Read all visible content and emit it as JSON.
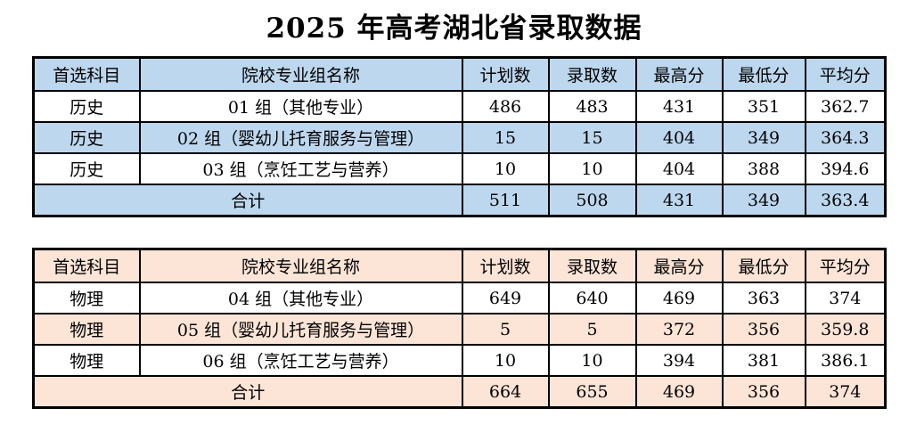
{
  "title": "2025 年高考湖北省录取数据",
  "colors": {
    "history_accent": "#BDD7EE",
    "physics_accent": "#FCE4D6",
    "border": "#000000",
    "plain_row": "#FFFFFF"
  },
  "tables": [
    {
      "id": "history",
      "headers": [
        "首选科目",
        "院校专业组名称",
        "计划数",
        "录取数",
        "最高分",
        "最低分",
        "平均分"
      ],
      "rows": [
        [
          "历史",
          "01 组（其他专业）",
          "486",
          "483",
          "431",
          "351",
          "362.7"
        ],
        [
          "历史",
          "02 组（婴幼儿托育服务与管理）",
          "15",
          "15",
          "404",
          "349",
          "364.3"
        ],
        [
          "历史",
          "03 组（烹饪工艺与营养）",
          "10",
          "10",
          "404",
          "388",
          "394.6"
        ]
      ],
      "total_row": [
        "合计",
        "511",
        "508",
        "431",
        "349",
        "363.4"
      ]
    },
    {
      "id": "physics",
      "headers": [
        "首选科目",
        "院校专业组名称",
        "计划数",
        "录取数",
        "最高分",
        "最低分",
        "平均分"
      ],
      "rows": [
        [
          "物理",
          "04 组（其他专业）",
          "649",
          "640",
          "469",
          "363",
          "374"
        ],
        [
          "物理",
          "05 组（婴幼儿托育服务与管理）",
          "5",
          "5",
          "372",
          "356",
          "359.8"
        ],
        [
          "物理",
          "06 组（烹饪工艺与营养）",
          "10",
          "10",
          "394",
          "381",
          "386.1"
        ]
      ],
      "total_row": [
        "合计",
        "664",
        "655",
        "469",
        "356",
        "374"
      ]
    }
  ]
}
